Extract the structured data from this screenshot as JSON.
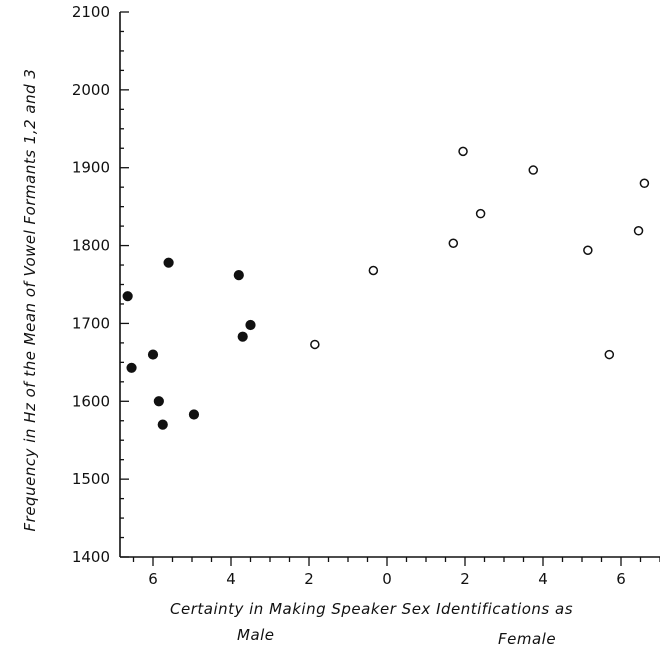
{
  "chart_data": {
    "type": "scatter",
    "ylabel": "Frequency in Hz of the Mean of Vowel Formants 1,2 and 3",
    "xlabel": "Certainty in Making Speaker Sex Identifications as",
    "xlabel_left": "Male",
    "xlabel_right": "Female",
    "ylim": [
      1400,
      2100
    ],
    "yticks": [
      1400,
      1500,
      1600,
      1700,
      1800,
      1900,
      2000,
      2100
    ],
    "y_tick_labels": [
      "1400",
      "1500",
      "1600",
      "1700",
      "1800",
      "1900",
      "2000",
      "2100"
    ],
    "x_scale": "signed certainty: male to the left of 0, female to the right",
    "xlim": [
      -7,
      7
    ],
    "xticks": [
      -6,
      -4,
      -2,
      0,
      2,
      4,
      6
    ],
    "x_tick_labels": [
      "6",
      "4",
      "2",
      "0",
      "2",
      "4",
      "6"
    ],
    "series": [
      {
        "marker": "filled-circle",
        "points": [
          [
            -6.65,
            1735
          ],
          [
            -6.55,
            1643
          ],
          [
            -6.0,
            1660
          ],
          [
            -5.85,
            1600
          ],
          [
            -5.75,
            1570
          ],
          [
            -5.6,
            1778
          ],
          [
            -4.95,
            1583
          ],
          [
            -3.8,
            1762
          ],
          [
            -3.7,
            1683
          ],
          [
            -3.5,
            1698
          ]
        ]
      },
      {
        "marker": "open-circle",
        "points": [
          [
            -1.85,
            1673
          ],
          [
            -0.35,
            1768
          ],
          [
            1.7,
            1803
          ],
          [
            1.95,
            1921
          ],
          [
            2.4,
            1841
          ],
          [
            3.75,
            1897
          ],
          [
            5.15,
            1794
          ],
          [
            5.7,
            1660
          ],
          [
            6.45,
            1819
          ],
          [
            6.6,
            1880
          ]
        ]
      }
    ],
    "grid": false,
    "legend": "none"
  }
}
